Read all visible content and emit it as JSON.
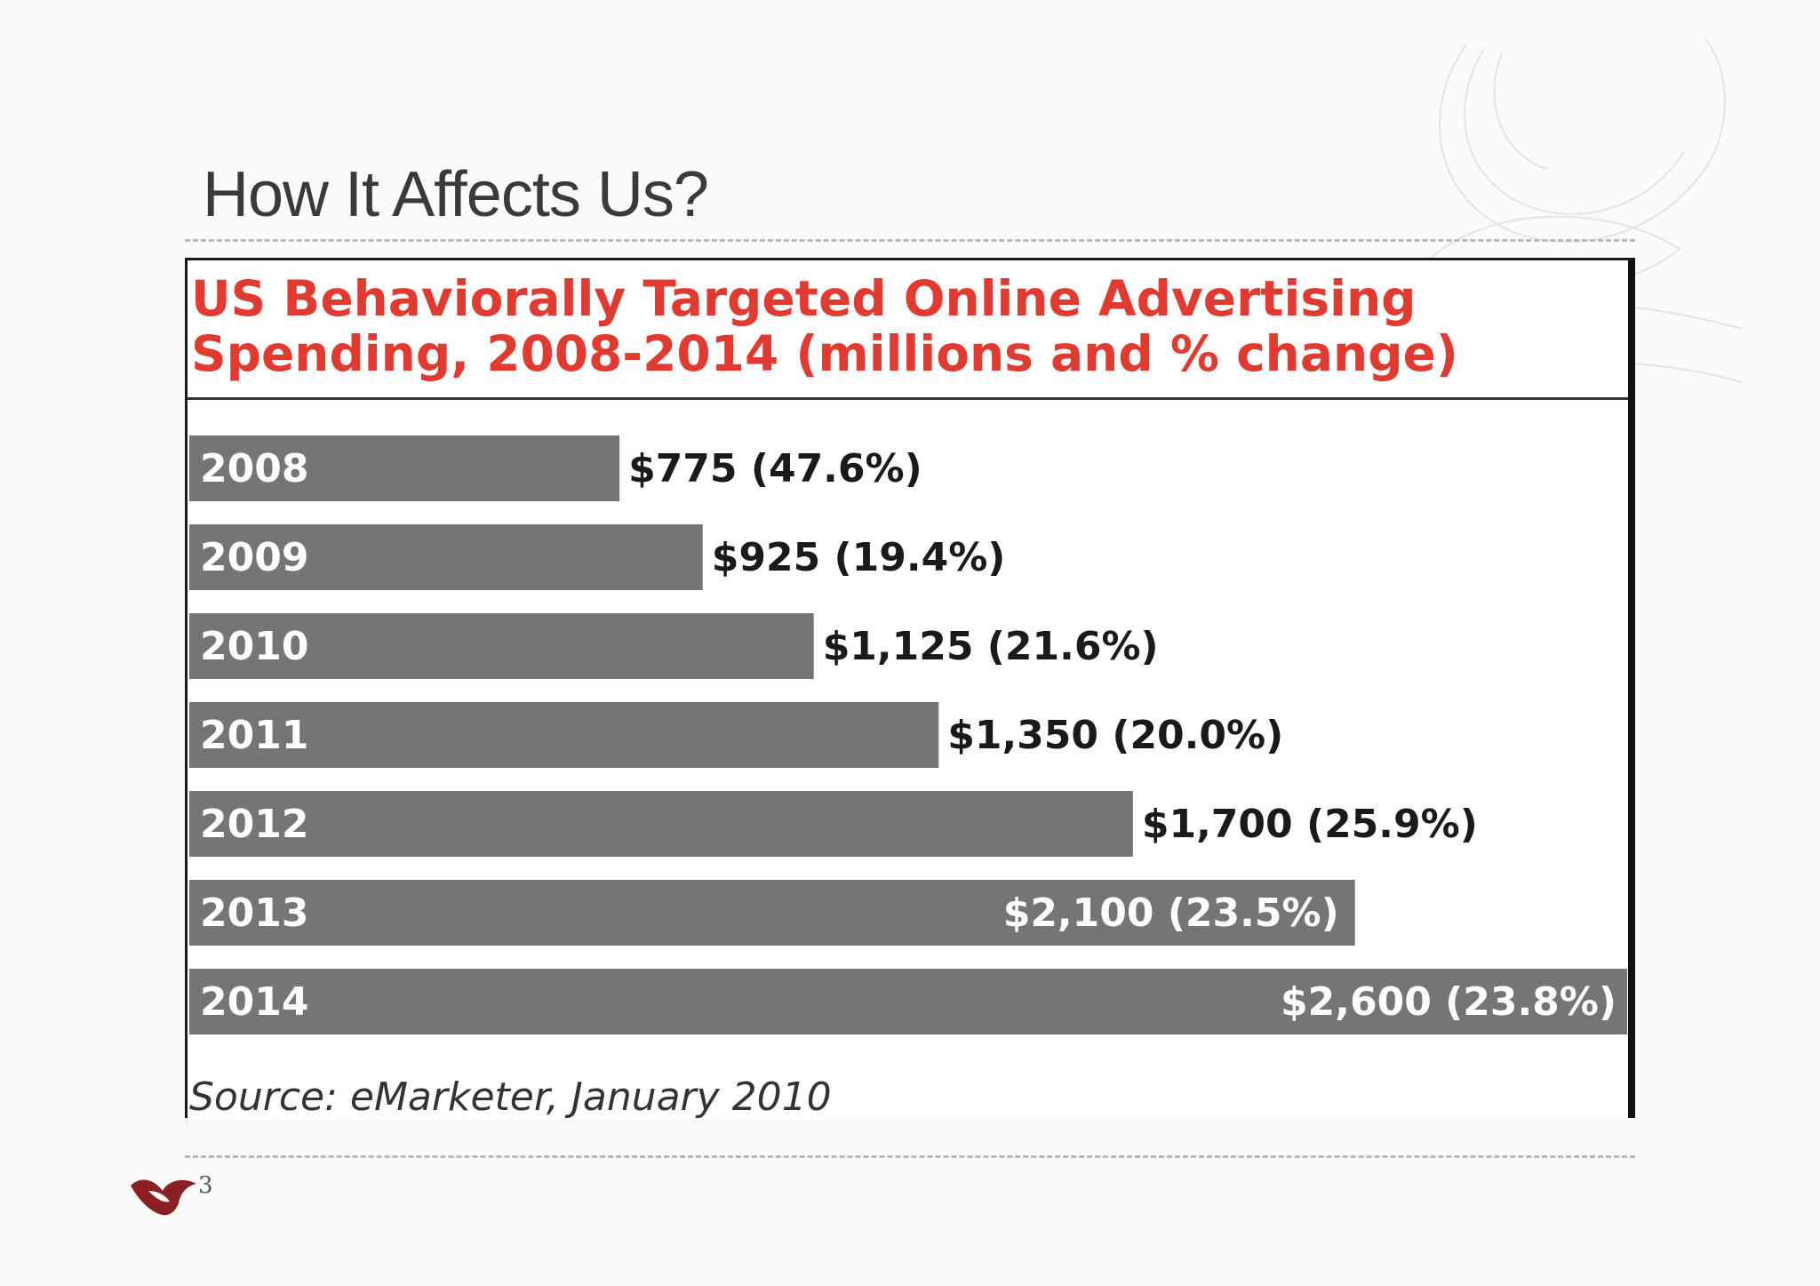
{
  "slide": {
    "title": "How It Affects Us?",
    "page_number": "3"
  },
  "chart_data": {
    "type": "bar",
    "orientation": "horizontal",
    "title_line1": "US Behaviorally Targeted Online Advertising",
    "title_line2": "Spending, 2008-2014 (millions and % change)",
    "categories": [
      "2008",
      "2009",
      "2010",
      "2011",
      "2012",
      "2013",
      "2014"
    ],
    "values": [
      775,
      925,
      1125,
      1350,
      1700,
      2100,
      2600
    ],
    "labels": [
      "$775 (47.6%)",
      "$925 (19.4%)",
      "$1,125 (21.6%)",
      "$1,350 (20.0%)",
      "$1,700 (25.9%)",
      "$2,100 (23.5%)",
      "$2,600 (23.8%)"
    ],
    "xlim": [
      0,
      2600
    ],
    "source": "Source: eMarketer, January 2010"
  },
  "colors": {
    "title_red": "#e03a31",
    "bar_gray": "#767475",
    "label_dark": "#1a1a1a",
    "label_light": "#ffffff",
    "logo_red": "#8a1f24"
  }
}
